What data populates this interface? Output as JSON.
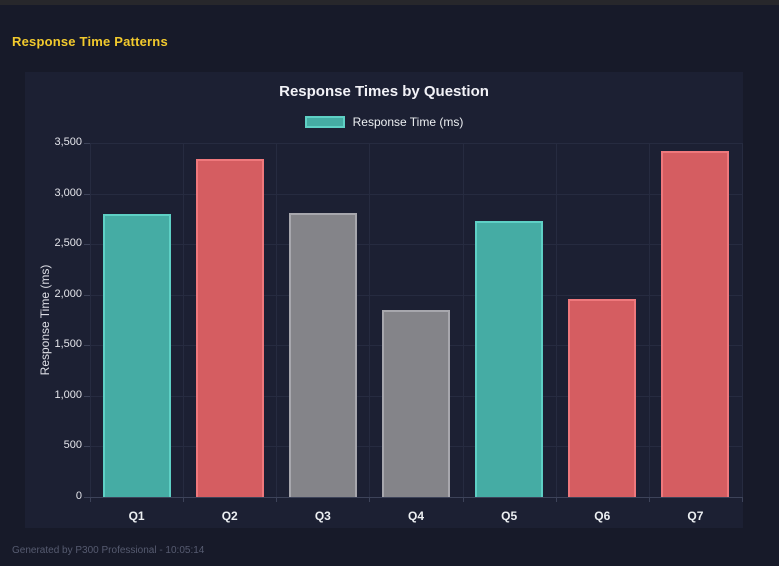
{
  "page": {
    "heading": "Response Time Patterns",
    "footer": "Generated by P300 Professional - 10:05:14"
  },
  "chart": {
    "title": "Response Times by Question",
    "legend_label": "Response Time (ms)",
    "y_axis_title": "Response Time (ms)"
  },
  "colors": {
    "heading_yellow": "#f2ca2d",
    "page_bg": "#171a29",
    "card_bg": "#1c2033",
    "grid_line": "#262b40",
    "teal_fill": "#45aca4",
    "teal_border": "#5ed0c5",
    "red_fill": "#d55d61",
    "red_border": "#ef787c",
    "gray_fill": "#848489",
    "gray_border": "#a7a7ad"
  },
  "chart_data": {
    "type": "bar",
    "title": "Response Times by Question",
    "categories": [
      "Q1",
      "Q2",
      "Q3",
      "Q4",
      "Q5",
      "Q6",
      "Q7"
    ],
    "values": [
      2800,
      3340,
      2810,
      1850,
      2730,
      1960,
      3420
    ],
    "bar_colors": [
      "teal",
      "red",
      "gray",
      "gray",
      "teal",
      "red",
      "red"
    ],
    "xlabel": "",
    "ylabel": "Response Time (ms)",
    "ylim": [
      0,
      3500
    ],
    "ytick_step": 500,
    "yticks": [
      "3,500",
      "3,000",
      "2,500",
      "2,000",
      "1,500",
      "1,000",
      "500",
      "0"
    ],
    "legend": [
      "Response Time (ms)"
    ],
    "legend_position": "top",
    "grid": true
  }
}
